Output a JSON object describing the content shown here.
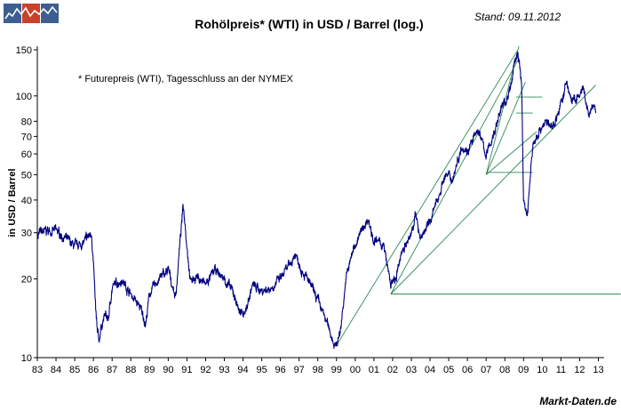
{
  "chart_data": {
    "type": "line",
    "title": "Rohölpreis* (WTI) in USD / Barrel (log.)",
    "date_note": "Stand: 09.11.2012",
    "footnote": "* Futurepreis (WTI), Tagesschluss an der NYMEX",
    "ylabel": "in USD / Barrel",
    "xlabel": "",
    "source": "Markt-Daten.de",
    "y_scale": "log",
    "ylim": [
      10,
      150
    ],
    "xlim": [
      1983.0,
      2014.2
    ],
    "y_ticks": [
      10,
      20,
      30,
      40,
      50,
      60,
      70,
      80,
      100,
      150
    ],
    "x_tick_labels": [
      "83",
      "84",
      "85",
      "86",
      "87",
      "88",
      "89",
      "90",
      "91",
      "92",
      "93",
      "94",
      "95",
      "96",
      "97",
      "98",
      "99",
      "00",
      "01",
      "02",
      "03",
      "04",
      "05",
      "06",
      "07",
      "08",
      "09",
      "10",
      "11",
      "12",
      "13"
    ],
    "grid": false,
    "line_color": "#000080",
    "trendline_color": "#2e8b57",
    "series": [
      {
        "values_x": [
          1983.0,
          1983.5,
          1984.0,
          1984.5,
          1985.0,
          1985.5,
          1985.9,
          1986.0,
          1986.1,
          1986.2,
          1986.3,
          1986.4,
          1986.6,
          1986.8,
          1987.0,
          1987.5,
          1988.0,
          1988.5,
          1988.8,
          1989.0,
          1989.5,
          1990.0,
          1990.4,
          1990.6,
          1990.8,
          1990.9,
          1991.0,
          1991.2,
          1991.5,
          1992.0,
          1992.5,
          1993.0,
          1993.5,
          1993.9,
          1994.2,
          1994.5,
          1995.0,
          1995.5,
          1996.0,
          1996.5,
          1996.8,
          1997.0,
          1997.5,
          1998.0,
          1998.5,
          1998.95,
          1999.2,
          1999.5,
          1999.9,
          2000.2,
          2000.5,
          2000.7,
          2001.0,
          2001.5,
          2001.9,
          2002.2,
          2002.5,
          2002.9,
          2003.2,
          2003.5,
          2003.9,
          2004.3,
          2004.8,
          2005.2,
          2005.7,
          2006.0,
          2006.6,
          2007.0,
          2007.5,
          2007.8,
          2008.0,
          2008.3,
          2008.5,
          2008.7,
          2008.9,
          2009.0,
          2009.2,
          2009.5,
          2009.9,
          2010.2,
          2010.5,
          2010.9,
          2011.2,
          2011.3,
          2011.6,
          2011.9,
          2012.2,
          2012.4,
          2012.5,
          2012.7,
          2012.86
        ],
        "values_y": [
          29.5,
          30.5,
          30.5,
          28.5,
          26.5,
          27.5,
          30.0,
          23.0,
          16.0,
          12.5,
          11.5,
          13.0,
          14.5,
          14.0,
          18.5,
          20.0,
          17.5,
          15.5,
          13.5,
          17.5,
          20.0,
          21.5,
          17.0,
          26.0,
          38.0,
          33.0,
          27.0,
          19.5,
          20.5,
          19.0,
          21.5,
          20.0,
          17.5,
          14.5,
          15.5,
          19.0,
          18.0,
          18.5,
          20.0,
          22.5,
          25.0,
          23.0,
          19.5,
          16.5,
          13.5,
          11.0,
          12.5,
          20.0,
          26.0,
          29.0,
          32.0,
          34.0,
          28.0,
          27.0,
          19.0,
          20.0,
          26.0,
          28.0,
          35.0,
          29.0,
          32.0,
          38.0,
          50.0,
          48.0,
          65.0,
          62.0,
          74.0,
          59.0,
          75.0,
          90.0,
          94.0,
          105.0,
          135.0,
          145.0,
          110.0,
          40.0,
          35.0,
          65.0,
          75.0,
          80.0,
          75.0,
          88.0,
          105.0,
          112.0,
          95.0,
          98.0,
          105.0,
          88.0,
          84.0,
          92.0,
          86.0
        ]
      }
    ],
    "trendlines": [
      {
        "x": [
          1998.95,
          2008.7
        ],
        "y": [
          11.0,
          150.0
        ]
      },
      {
        "x": [
          2001.9,
          2008.7
        ],
        "y": [
          17.5,
          137.0
        ]
      },
      {
        "x": [
          2001.9,
          2012.86
        ],
        "y": [
          17.5,
          110.0
        ]
      },
      {
        "x": [
          2007.0,
          2008.75
        ],
        "y": [
          50.0,
          155.0
        ]
      },
      {
        "x": [
          2007.0,
          2009.1
        ],
        "y": [
          50.0,
          113.0
        ]
      },
      {
        "x": [
          2007.0,
          2009.7
        ],
        "y": [
          50.0,
          73.0
        ]
      },
      {
        "x": [
          2001.9,
          2014.2
        ],
        "y": [
          17.5,
          17.5
        ]
      },
      {
        "x": [
          2007.0,
          2009.5
        ],
        "y": [
          51.0,
          51.0
        ]
      },
      {
        "x": [
          2008.6,
          2009.5
        ],
        "y": [
          86.0,
          86.0
        ]
      },
      {
        "x": [
          2008.6,
          2010.0
        ],
        "y": [
          99.0,
          99.0
        ]
      }
    ]
  }
}
